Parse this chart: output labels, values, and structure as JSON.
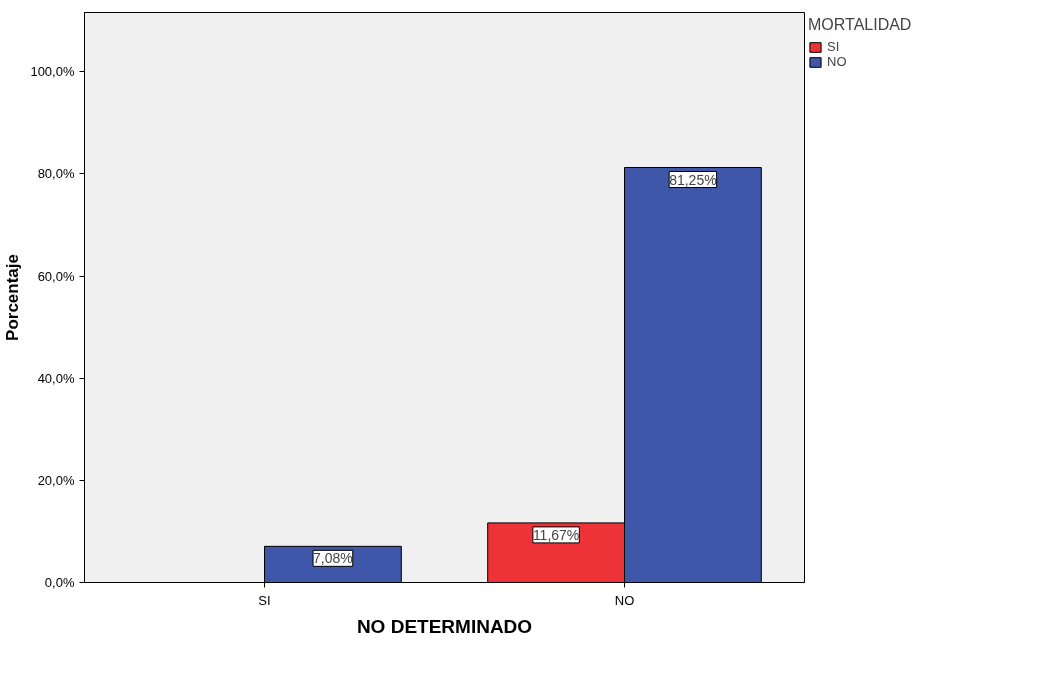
{
  "chart_data": {
    "type": "bar",
    "xlabel": "NO DETERMINADO",
    "ylabel": "Porcentaje",
    "legend_title": "MORTALIDAD",
    "categories": [
      "SI",
      "NO"
    ],
    "series": [
      {
        "name": "SI",
        "color": "#ee3338",
        "values": [
          null,
          11.67
        ],
        "value_labels": [
          null,
          "11,67%"
        ]
      },
      {
        "name": "NO",
        "color": "#3f57a8",
        "values": [
          7.08,
          81.25
        ],
        "value_labels": [
          "7,08%",
          "81,25%"
        ]
      }
    ],
    "ylim": [
      0,
      111.6
    ],
    "yticks": [
      {
        "value": 0,
        "label": "0,0%"
      },
      {
        "value": 20,
        "label": "20,0%"
      },
      {
        "value": 40,
        "label": "40,0%"
      },
      {
        "value": 60,
        "label": "60,0%"
      },
      {
        "value": 80,
        "label": "80,0%"
      },
      {
        "value": 100,
        "label": "100,0%"
      }
    ],
    "grid": false,
    "legend": "top right"
  }
}
